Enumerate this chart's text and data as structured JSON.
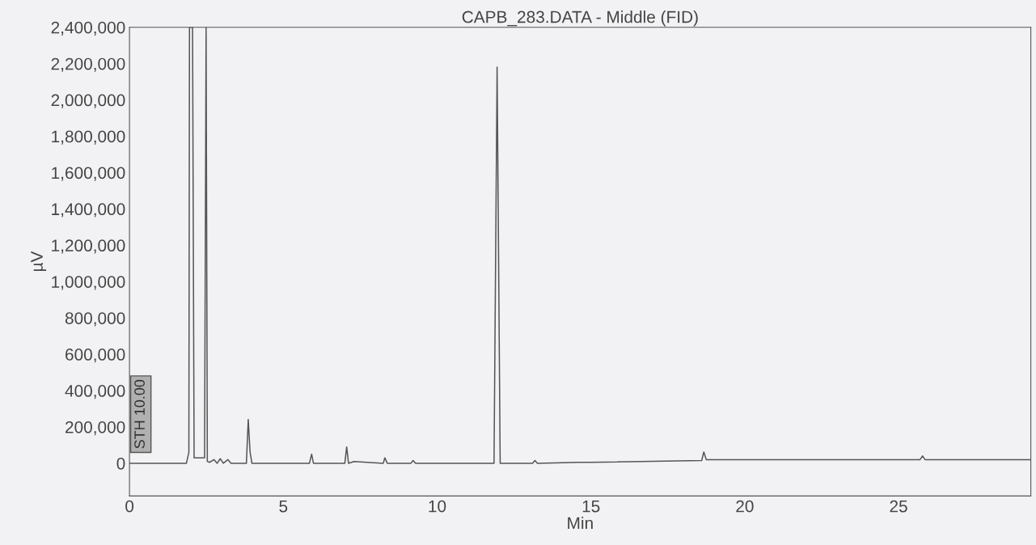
{
  "chart_data": {
    "type": "line",
    "title": "CAPB_283.DATA - Middle (FID)",
    "xlabel": "Min",
    "ylabel": "µV",
    "annotations": [
      "STH 10.00"
    ],
    "series": [
      {
        "color": "#555555",
        "x": [
          0,
          1.85,
          1.93,
          1.95,
          2.05,
          2.1,
          2.44,
          2.49,
          2.53,
          2.6,
          2.75,
          2.85,
          2.95,
          3.05,
          3.2,
          3.3,
          3.8,
          3.86,
          3.92,
          3.98,
          5.85,
          5.92,
          5.98,
          7.0,
          7.06,
          7.12,
          7.3,
          8.25,
          8.3,
          8.38,
          9.15,
          9.22,
          9.3,
          11.85,
          11.95,
          12.05,
          13.1,
          13.18,
          13.26,
          14.6,
          15.0,
          18.6,
          18.67,
          18.75,
          20.0,
          25.7,
          25.78,
          25.86,
          29.3
        ],
        "values": [
          0,
          0,
          60000,
          2400000,
          2400000,
          30000,
          30000,
          2400000,
          10000,
          5000,
          20000,
          0,
          25000,
          0,
          20000,
          0,
          0,
          241000,
          60000,
          0,
          0,
          50000,
          0,
          0,
          90000,
          0,
          10000,
          0,
          30000,
          0,
          0,
          15000,
          0,
          0,
          2180000,
          0,
          0,
          15000,
          0,
          5000,
          5000,
          15000,
          62000,
          20000,
          20000,
          20000,
          40000,
          20000,
          20000
        ]
      }
    ],
    "xlim": [
      0,
      29.3
    ],
    "ylim": [
      -180000,
      2400000
    ],
    "xticks": [
      0,
      5,
      10,
      15,
      20,
      25
    ],
    "yticks": [
      {
        "value": 0,
        "label": "0"
      },
      {
        "value": 200000,
        "label": "200,000"
      },
      {
        "value": 400000,
        "label": "400,000"
      },
      {
        "value": 600000,
        "label": "600,000"
      },
      {
        "value": 800000,
        "label": "800,000"
      },
      {
        "value": 1000000,
        "label": "1,000,000"
      },
      {
        "value": 1200000,
        "label": "1,200,000"
      },
      {
        "value": 1400000,
        "label": "1,400,000"
      },
      {
        "value": 1600000,
        "label": "1,600,000"
      },
      {
        "value": 1800000,
        "label": "1,800,000"
      },
      {
        "value": 2000000,
        "label": "2,000,000"
      },
      {
        "value": 2200000,
        "label": "2,200,000"
      },
      {
        "value": 2400000,
        "label": "2,400,000"
      }
    ],
    "grid": false,
    "legend": false,
    "marker": "none",
    "line_style": "solid"
  }
}
